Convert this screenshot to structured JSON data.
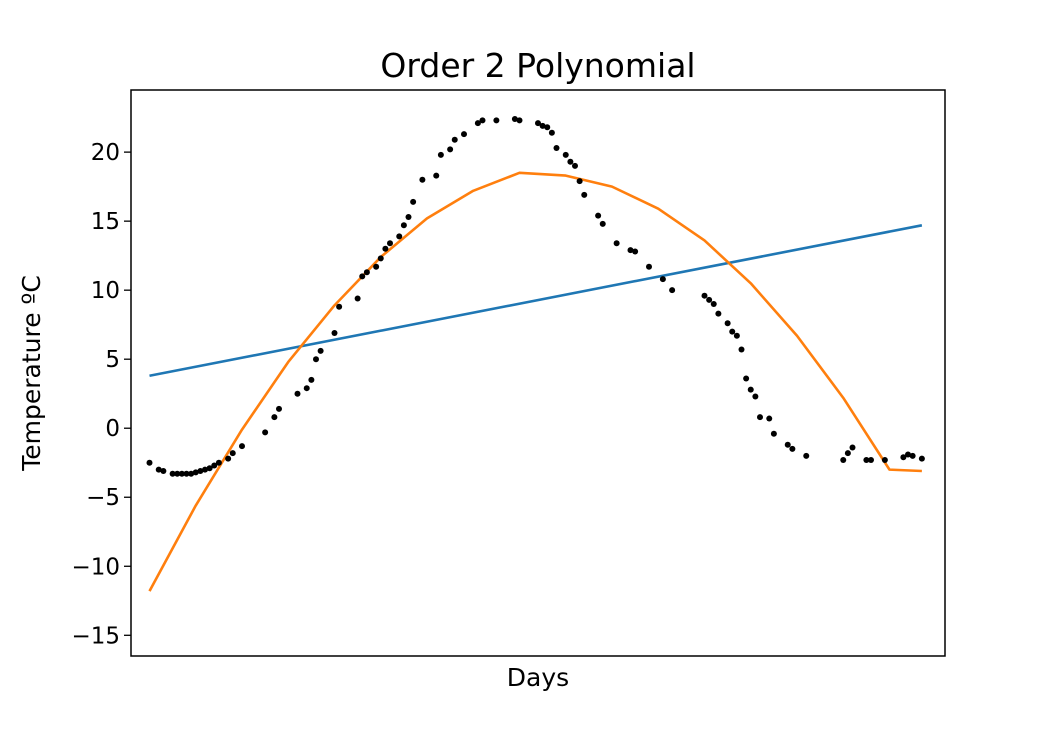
{
  "chart_data": {
    "type": "scatter",
    "title": "Order 2 Polynomial",
    "xlabel": "Days",
    "ylabel": "Temperature ºC",
    "xlim": [
      -4,
      172
    ],
    "ylim": [
      -16.5,
      24.5
    ],
    "yticks": [
      -15,
      -10,
      -5,
      0,
      5,
      10,
      15,
      20
    ],
    "ytick_labels": [
      "−15",
      "−10",
      "−5",
      "0",
      "5",
      "10",
      "15",
      "20"
    ],
    "show_xticks": false,
    "grid": false,
    "legend": "none",
    "colors": {
      "observations": "#000000",
      "order_1_fit": "#1f77b4",
      "order_2_fit": "#ff7f0e"
    },
    "series": [
      {
        "kind": "scatter",
        "x": [
          0,
          2,
          3,
          5,
          6,
          7,
          8,
          9,
          10,
          11,
          12,
          13,
          14,
          15,
          17,
          18,
          20,
          25,
          27,
          28,
          32,
          34,
          35,
          36,
          37,
          40,
          41,
          45,
          46,
          47,
          49,
          50,
          51,
          52,
          54,
          55,
          56,
          57,
          59,
          62,
          63,
          65,
          66,
          68,
          71,
          72,
          75,
          79,
          80,
          84,
          85,
          86,
          87,
          88,
          90,
          91,
          92,
          93,
          94,
          97,
          98,
          101,
          104,
          105,
          108,
          111,
          113,
          120,
          121,
          122,
          123,
          125,
          126,
          127,
          128,
          129,
          130,
          131,
          132,
          134,
          135,
          138,
          139,
          142,
          150,
          151,
          152,
          155,
          156,
          159,
          163,
          164,
          165,
          167
        ],
        "y": [
          -2.5,
          -3.0,
          -3.1,
          -3.3,
          -3.3,
          -3.3,
          -3.3,
          -3.3,
          -3.2,
          -3.1,
          -3.0,
          -2.9,
          -2.7,
          -2.5,
          -2.2,
          -1.8,
          -1.3,
          -0.3,
          0.8,
          1.4,
          2.5,
          2.9,
          3.5,
          5.0,
          5.6,
          6.9,
          8.8,
          9.4,
          11.0,
          11.3,
          11.7,
          12.3,
          13.0,
          13.4,
          13.9,
          14.7,
          15.3,
          16.4,
          18.0,
          18.3,
          19.8,
          20.2,
          20.9,
          21.3,
          22.1,
          22.3,
          22.3,
          22.4,
          22.3,
          22.1,
          21.9,
          21.8,
          21.4,
          20.3,
          19.8,
          19.3,
          19.0,
          17.9,
          16.9,
          15.4,
          14.8,
          13.4,
          12.9,
          12.8,
          11.7,
          10.8,
          10.0,
          9.6,
          9.3,
          9.0,
          8.3,
          7.6,
          7.0,
          6.7,
          5.7,
          3.6,
          2.8,
          2.3,
          0.8,
          0.7,
          -0.4,
          -1.2,
          -1.5,
          -2.0,
          -2.3,
          -1.8,
          -1.4,
          -2.3,
          -2.3,
          -2.3,
          -2.1,
          -1.9,
          -2.0,
          -2.2
        ]
      },
      {
        "kind": "line",
        "x": [
          0,
          167
        ],
        "y": [
          3.8,
          14.7
        ]
      },
      {
        "kind": "line",
        "x": [
          0,
          10,
          20,
          30,
          40,
          50,
          60,
          70,
          80,
          90,
          100,
          110,
          120,
          130,
          140,
          150,
          160,
          167
        ],
        "y": [
          -11.8,
          -5.6,
          -0.1,
          4.8,
          8.9,
          12.4,
          15.2,
          17.2,
          18.5,
          18.3,
          17.5,
          15.9,
          13.6,
          10.5,
          6.7,
          2.2,
          -3.0,
          -3.1
        ]
      }
    ]
  }
}
